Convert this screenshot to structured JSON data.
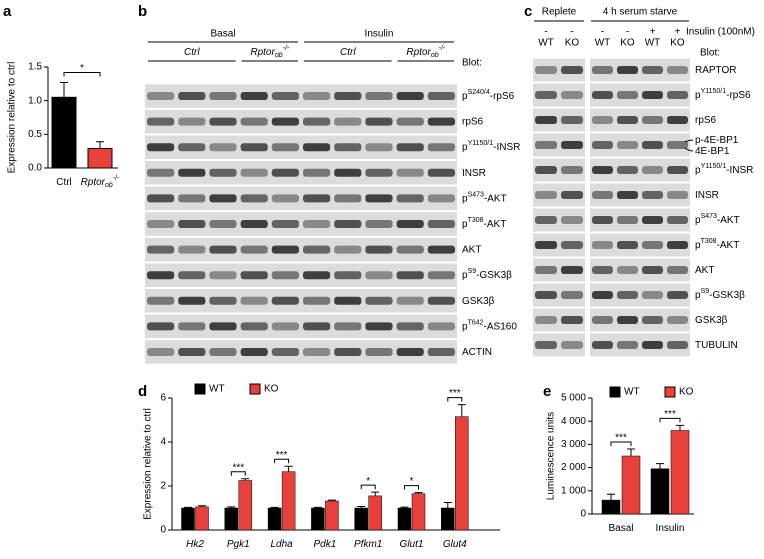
{
  "chart_data": [
    {
      "type": "bar",
      "panel": "a",
      "ylabel": "Expression relative to ctrl",
      "categories": [
        "Ctrl",
        "Rptor"
      ],
      "category_sub": [
        null,
        "ob"
      ],
      "category_sup": [
        null,
        "-/-"
      ],
      "values": [
        1.05,
        0.29
      ],
      "errors": [
        0.22,
        0.1
      ],
      "colors": [
        "#000000",
        "#e8413c"
      ],
      "ylim": [
        0,
        1.5
      ],
      "yticks": [
        {
          "value": 0,
          "label": "0.0"
        },
        0.5,
        {
          "value": 1,
          "label": "1.0"
        },
        1.5
      ],
      "significance": "*"
    },
    {
      "type": "grouped_bar",
      "panel": "d",
      "ylabel": "Expression relative to ctrl",
      "categories": [
        "Hk2",
        "Pgk1",
        "Ldha",
        "Pdk1",
        "Pfkm1",
        "Glut1",
        "Glut4"
      ],
      "series": [
        {
          "name": "WT",
          "color": "#000000",
          "values": [
            1,
            1,
            1,
            1,
            1,
            1,
            1
          ],
          "errors": [
            0.03,
            0.05,
            0.03,
            0.03,
            0.07,
            0.04,
            0.25
          ]
        },
        {
          "name": "KO",
          "color": "#e8413c",
          "values": [
            1.05,
            2.25,
            2.65,
            1.32,
            1.55,
            1.65,
            5.15
          ],
          "errors": [
            0.05,
            0.08,
            0.25,
            0.04,
            0.17,
            0.05,
            0.55
          ]
        }
      ],
      "ylim": [
        0,
        6
      ],
      "yticks": [
        0,
        2,
        4,
        6
      ],
      "significance": [
        null,
        "***",
        "***",
        null,
        "*",
        "*",
        "***"
      ]
    },
    {
      "type": "grouped_bar",
      "panel": "e",
      "ylabel": "Luminescence units",
      "categories": [
        "Basal",
        "Insulin"
      ],
      "series": [
        {
          "name": "WT",
          "color": "#000000",
          "values": [
            600,
            1950
          ],
          "errors": [
            250,
            220
          ]
        },
        {
          "name": "KO",
          "color": "#e8413c",
          "values": [
            2500,
            3600
          ],
          "errors": [
            300,
            220
          ]
        }
      ],
      "ylim": [
        0,
        5000
      ],
      "yticks": [
        0,
        {
          "value": 1000,
          "label": "1 000"
        },
        {
          "value": 2000,
          "label": "2 000"
        },
        {
          "value": 3000,
          "label": "3 000"
        },
        {
          "value": 4000,
          "label": "4 000"
        },
        {
          "value": 5000,
          "label": "5 000"
        }
      ],
      "significance": [
        "***",
        "***"
      ]
    }
  ],
  "blots": [
    {
      "panel": "b",
      "groups": [
        "Basal",
        "Insulin"
      ],
      "subgroups": [
        {
          "pre": "Ctrl"
        },
        {
          "pre": "Rptor",
          "sub": "ob",
          "sup": "-/-"
        },
        {
          "pre": "Ctrl"
        },
        {
          "pre": "Rptor",
          "sub": "ob",
          "sup": "-/-"
        }
      ],
      "blot_label": "Blot:",
      "rows": [
        {
          "pre": "p",
          "sup": "S240/4",
          "post": "-rpS6"
        },
        {
          "post": "rpS6"
        },
        {
          "pre": "p",
          "sup": "Y1150/1",
          "post": "-INSR"
        },
        {
          "post": "INSR"
        },
        {
          "pre": "p",
          "sup": "S473",
          "post": "-AKT"
        },
        {
          "pre": "p",
          "sup": "T308",
          "post": "-AKT"
        },
        {
          "post": "AKT"
        },
        {
          "pre": "p",
          "sup": "S9",
          "post": "-GSK3β"
        },
        {
          "post": "GSK3β"
        },
        {
          "pre": "p",
          "sup": "T642",
          "post": "-AS160"
        },
        {
          "post": "ACTIN"
        }
      ]
    },
    {
      "panel": "c",
      "groups": [
        "Replete",
        "4 h serum starve"
      ],
      "treatment": "Insulin (100nM)",
      "treatment_signs": [
        "-",
        "-",
        "-",
        "-",
        "+",
        "+"
      ],
      "genotypes": [
        "WT",
        "KO",
        "WT",
        "KO",
        "WT",
        "KO"
      ],
      "blot_label": "Blot:",
      "rows": [
        {
          "post": "RAPTOR"
        },
        {
          "pre": "p",
          "sup": "Y1150/1",
          "post": "-rpS6"
        },
        {
          "post": "rpS6"
        },
        [
          {
            "post": "p-4E-BP1"
          },
          {
            "post": "4E-BP1"
          }
        ],
        {
          "pre": "p",
          "sup": "Y1150/1",
          "post": "-INSR"
        },
        {
          "post": "INSR"
        },
        {
          "pre": "p",
          "sup": "S473",
          "post": "-AKT"
        },
        {
          "pre": "p",
          "sup": "T308",
          "post": "-AKT"
        },
        {
          "post": "AKT"
        },
        {
          "pre": "p",
          "sup": "S9",
          "post": "-GSK3β"
        },
        {
          "post": "GSK3β"
        },
        {
          "post": "TUBULIN"
        }
      ]
    }
  ]
}
